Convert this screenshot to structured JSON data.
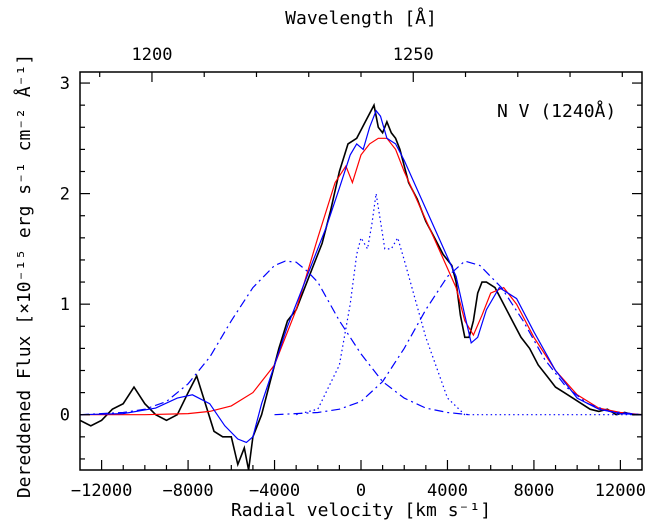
{
  "chart_data": {
    "type": "line",
    "title": "",
    "annotation": "N V (1240Å)",
    "xlabel": "Radial velocity [km s⁻¹]",
    "ylabel": "Dereddened Flux [×10⁻¹⁵ erg s⁻¹ cm⁻² Å⁻¹]",
    "top_xlabel": "Wavelength [Å]",
    "xlim": [
      -13000,
      13000
    ],
    "ylim": [
      -0.5,
      3.1
    ],
    "x_ticks": [
      -12000,
      -8000,
      -4000,
      0,
      4000,
      8000,
      12000
    ],
    "x_tick_labels": [
      "−12000",
      "−8000",
      "−4000",
      "0",
      "4000",
      "8000",
      "12000"
    ],
    "y_ticks": [
      0,
      1,
      2,
      3
    ],
    "y_tick_labels": [
      "0",
      "1",
      "2",
      "3"
    ],
    "top_ticks": [
      1200,
      1250
    ],
    "top_tick_labels": [
      "1200",
      "1250"
    ],
    "reference_wavelength": 1240,
    "colors": {
      "observed": "#000000",
      "model_red": "#ff0000",
      "model_blue": "#0000ff"
    },
    "series": [
      {
        "style": "solid",
        "color": "#000000",
        "x": [
          -13000,
          -12500,
          -12000,
          -11500,
          -11000,
          -10500,
          -10000,
          -9500,
          -9000,
          -8500,
          -8000,
          -7600,
          -7200,
          -6800,
          -6400,
          -6000,
          -5700,
          -5400,
          -5200,
          -5000,
          -4600,
          -4200,
          -3800,
          -3400,
          -3000,
          -2600,
          -2200,
          -1800,
          -1400,
          -1000,
          -600,
          -200,
          200,
          600,
          800,
          1000,
          1200,
          1400,
          1600,
          1800,
          2200,
          2600,
          3000,
          3400,
          3800,
          4200,
          4400,
          4600,
          4800,
          5000,
          5200,
          5400,
          5600,
          5800,
          6200,
          6600,
          7000,
          7400,
          7800,
          8200,
          8600,
          9000,
          9400,
          9800,
          10200,
          10600,
          11000,
          11400,
          11800,
          12200,
          12600,
          13000
        ],
        "y": [
          -0.05,
          -0.1,
          -0.05,
          0.05,
          0.1,
          0.25,
          0.1,
          0.0,
          -0.05,
          0.0,
          0.2,
          0.35,
          0.1,
          -0.15,
          -0.2,
          -0.2,
          -0.45,
          -0.3,
          -0.5,
          -0.2,
          0.0,
          0.3,
          0.6,
          0.85,
          0.95,
          1.15,
          1.35,
          1.55,
          1.85,
          2.2,
          2.45,
          2.5,
          2.65,
          2.8,
          2.6,
          2.55,
          2.65,
          2.55,
          2.5,
          2.4,
          2.1,
          1.95,
          1.75,
          1.6,
          1.45,
          1.35,
          1.2,
          0.9,
          0.7,
          0.7,
          0.85,
          1.1,
          1.2,
          1.2,
          1.15,
          1.0,
          0.85,
          0.7,
          0.6,
          0.45,
          0.35,
          0.25,
          0.2,
          0.15,
          0.1,
          0.05,
          0.03,
          0.05,
          0.0,
          0.02,
          0.0,
          0.0
        ]
      },
      {
        "style": "solid",
        "color": "#ff0000",
        "x": [
          -13000,
          -10000,
          -8000,
          -7000,
          -6000,
          -5000,
          -4000,
          -3000,
          -2000,
          -1200,
          -700,
          -400,
          0,
          400,
          800,
          1200,
          1600,
          2000,
          2800,
          3600,
          4400,
          4800,
          5200,
          5600,
          6000,
          6600,
          7200,
          8000,
          9000,
          10000,
          11000,
          12000,
          13000
        ],
        "y": [
          0,
          0,
          0.01,
          0.03,
          0.08,
          0.2,
          0.45,
          0.95,
          1.6,
          2.1,
          2.25,
          2.1,
          2.35,
          2.45,
          2.5,
          2.5,
          2.4,
          2.2,
          1.85,
          1.5,
          1.15,
          0.85,
          0.72,
          0.9,
          1.1,
          1.15,
          1.0,
          0.7,
          0.4,
          0.18,
          0.06,
          0.02,
          0
        ]
      },
      {
        "style": "solid",
        "color": "#0000ff",
        "x": [
          -13000,
          -11000,
          -9500,
          -8500,
          -7800,
          -7000,
          -6300,
          -5700,
          -5300,
          -5000,
          -4600,
          -4000,
          -3400,
          -2800,
          -2200,
          -1600,
          -1000,
          -500,
          -200,
          100,
          400,
          700,
          900,
          1200,
          1600,
          2000,
          2800,
          3600,
          4400,
          4800,
          5100,
          5400,
          5800,
          6400,
          7200,
          8000,
          9000,
          10000,
          11000,
          12000,
          13000
        ],
        "y": [
          0,
          0.01,
          0.06,
          0.15,
          0.18,
          0.1,
          -0.1,
          -0.22,
          -0.25,
          -0.2,
          0.1,
          0.45,
          0.8,
          1.1,
          1.4,
          1.7,
          2.05,
          2.35,
          2.45,
          2.4,
          2.6,
          2.75,
          2.7,
          2.5,
          2.45,
          2.3,
          1.95,
          1.6,
          1.25,
          0.9,
          0.65,
          0.7,
          0.95,
          1.15,
          1.05,
          0.75,
          0.4,
          0.15,
          0.05,
          0.01,
          0
        ]
      },
      {
        "style": "dashdot",
        "color": "#0000ff",
        "x": [
          -13000,
          -11000,
          -10000,
          -9000,
          -8000,
          -7000,
          -6000,
          -5000,
          -4000,
          -3500,
          -3000,
          -2500,
          -2000,
          -1000,
          0,
          1000,
          2000,
          3000,
          4000,
          5000
        ],
        "y": [
          0,
          0.02,
          0.05,
          0.12,
          0.28,
          0.52,
          0.85,
          1.15,
          1.35,
          1.39,
          1.38,
          1.3,
          1.2,
          0.85,
          0.55,
          0.3,
          0.15,
          0.06,
          0.02,
          0
        ]
      },
      {
        "style": "dashdot",
        "color": "#0000ff",
        "x": [
          -4000,
          -2000,
          -1000,
          0,
          1000,
          2000,
          3000,
          4000,
          4800,
          5500,
          6500,
          7500,
          8500,
          9500,
          10500,
          11500,
          13000
        ],
        "y": [
          0,
          0.02,
          0.05,
          0.12,
          0.3,
          0.6,
          0.95,
          1.25,
          1.39,
          1.35,
          1.15,
          0.85,
          0.5,
          0.25,
          0.1,
          0.03,
          0
        ]
      },
      {
        "style": "dotted",
        "color": "#0000ff",
        "x": [
          -3000,
          -2000,
          -1000,
          -500,
          -200,
          0,
          300,
          500,
          700,
          900,
          1100,
          1400,
          1700,
          2000,
          3000,
          4000,
          4800,
          13000
        ],
        "y": [
          0,
          0.05,
          0.45,
          1.0,
          1.45,
          1.6,
          1.5,
          1.72,
          2.0,
          1.75,
          1.5,
          1.5,
          1.6,
          1.4,
          0.7,
          0.15,
          0,
          0
        ]
      }
    ]
  }
}
